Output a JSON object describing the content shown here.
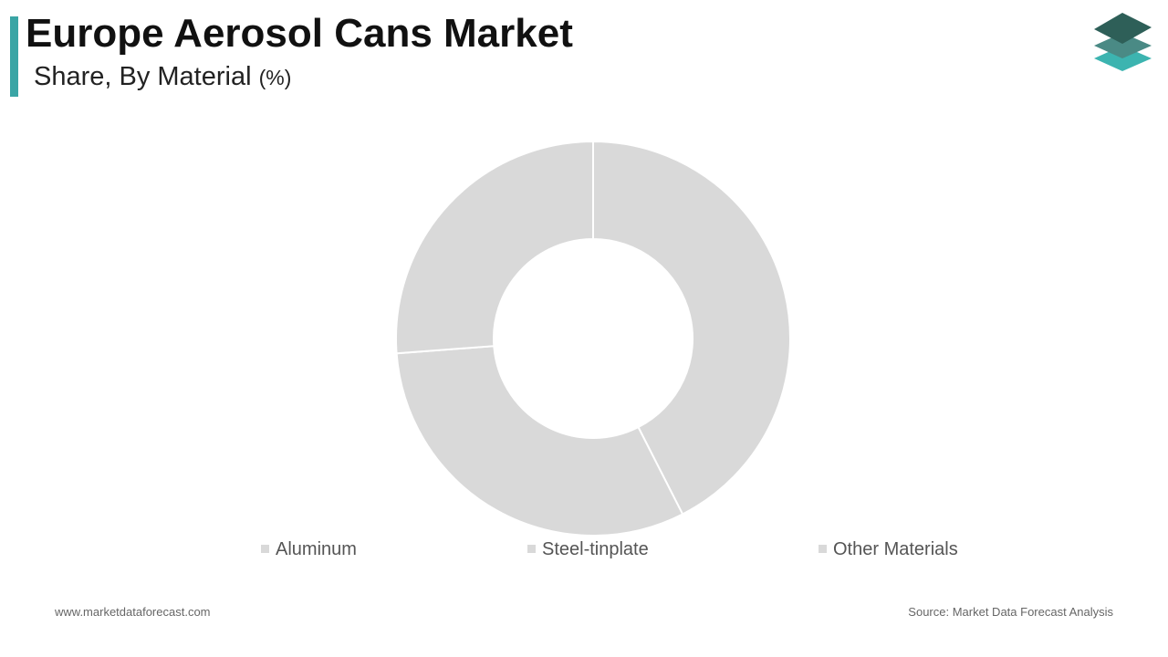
{
  "chart_data": {
    "type": "donut",
    "title": "Europe Aerosol Cans Market",
    "subtitle": "Share, By Material",
    "unit": "(%)",
    "categories": [
      "Aluminum",
      "Steel-tinplate",
      "Other Materials"
    ],
    "values": [
      42.5,
      31.3,
      26.2
    ],
    "colors": [
      "#d9d9d9",
      "#d9d9d9",
      "#d9d9d9"
    ],
    "legend": "bottom",
    "footer_left": "www.marketdataforecast.com",
    "footer_right": "Source: Market Data Forecast Analysis"
  }
}
